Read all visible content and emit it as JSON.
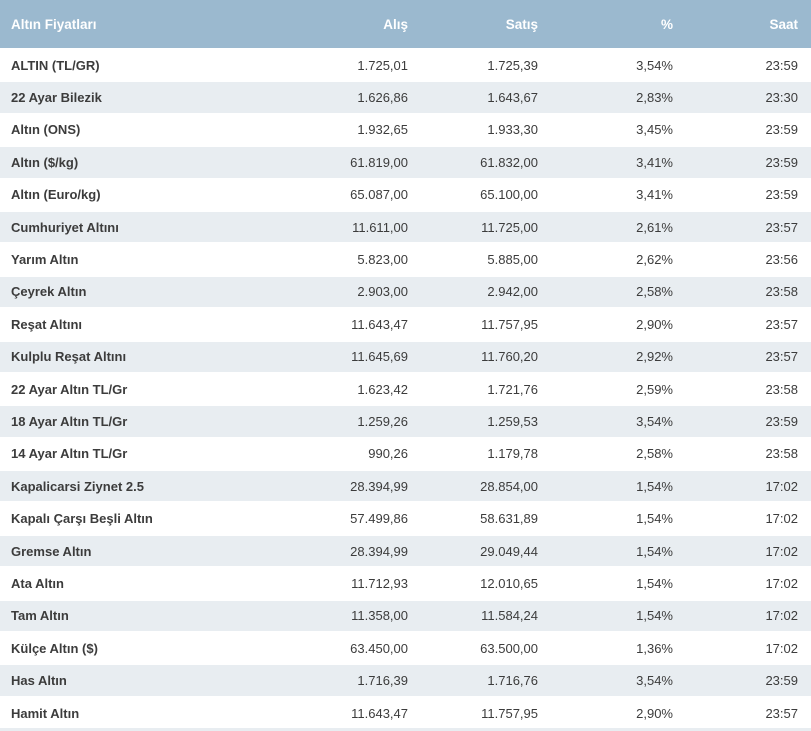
{
  "colors": {
    "header_bg": "#9bb9cf",
    "stripe_bg": "#e8edf1",
    "row_bg": "#ffffff",
    "separator": "#ffffff",
    "text": "#3c3c3c",
    "header_text": "#ffffff"
  },
  "table": {
    "header": {
      "title": "Altın Fiyatları",
      "buy": "Alış",
      "sell": "Satış",
      "percent": "%",
      "time": "Saat"
    },
    "rows": [
      {
        "name": "ALTIN (TL/GR)",
        "buy": "1.725,01",
        "sell": "1.725,39",
        "percent": "3,54%",
        "time": "23:59"
      },
      {
        "name": "22 Ayar Bilezik",
        "buy": "1.626,86",
        "sell": "1.643,67",
        "percent": "2,83%",
        "time": "23:30"
      },
      {
        "name": "Altın (ONS)",
        "buy": "1.932,65",
        "sell": "1.933,30",
        "percent": "3,45%",
        "time": "23:59"
      },
      {
        "name": "Altın ($/kg)",
        "buy": "61.819,00",
        "sell": "61.832,00",
        "percent": "3,41%",
        "time": "23:59"
      },
      {
        "name": "Altın (Euro/kg)",
        "buy": "65.087,00",
        "sell": "65.100,00",
        "percent": "3,41%",
        "time": "23:59"
      },
      {
        "name": "Cumhuriyet Altını",
        "buy": "11.611,00",
        "sell": "11.725,00",
        "percent": "2,61%",
        "time": "23:57"
      },
      {
        "name": "Yarım Altın",
        "buy": "5.823,00",
        "sell": "5.885,00",
        "percent": "2,62%",
        "time": "23:56"
      },
      {
        "name": "Çeyrek Altın",
        "buy": "2.903,00",
        "sell": "2.942,00",
        "percent": "2,58%",
        "time": "23:58"
      },
      {
        "name": "Reşat Altını",
        "buy": "11.643,47",
        "sell": "11.757,95",
        "percent": "2,90%",
        "time": "23:57"
      },
      {
        "name": "Kulplu Reşat Altını",
        "buy": "11.645,69",
        "sell": "11.760,20",
        "percent": "2,92%",
        "time": "23:57"
      },
      {
        "name": "22 Ayar Altın TL/Gr",
        "buy": "1.623,42",
        "sell": "1.721,76",
        "percent": "2,59%",
        "time": "23:58"
      },
      {
        "name": "18 Ayar Altın TL/Gr",
        "buy": "1.259,26",
        "sell": "1.259,53",
        "percent": "3,54%",
        "time": "23:59"
      },
      {
        "name": "14 Ayar Altın TL/Gr",
        "buy": "990,26",
        "sell": "1.179,78",
        "percent": "2,58%",
        "time": "23:58"
      },
      {
        "name": "Kapalicarsi Ziynet 2.5",
        "buy": "28.394,99",
        "sell": "28.854,00",
        "percent": "1,54%",
        "time": "17:02"
      },
      {
        "name": "Kapalı Çarşı Beşli Altın",
        "buy": "57.499,86",
        "sell": "58.631,89",
        "percent": "1,54%",
        "time": "17:02"
      },
      {
        "name": "Gremse Altın",
        "buy": "28.394,99",
        "sell": "29.049,44",
        "percent": "1,54%",
        "time": "17:02"
      },
      {
        "name": "Ata Altın",
        "buy": "11.712,93",
        "sell": "12.010,65",
        "percent": "1,54%",
        "time": "17:02"
      },
      {
        "name": "Tam Altın",
        "buy": "11.358,00",
        "sell": "11.584,24",
        "percent": "1,54%",
        "time": "17:02"
      },
      {
        "name": "Külçe Altın ($)",
        "buy": "63.450,00",
        "sell": "63.500,00",
        "percent": "1,36%",
        "time": "17:02"
      },
      {
        "name": "Has Altın",
        "buy": "1.716,39",
        "sell": "1.716,76",
        "percent": "3,54%",
        "time": "23:59"
      },
      {
        "name": "Hamit Altın",
        "buy": "11.643,47",
        "sell": "11.757,95",
        "percent": "2,90%",
        "time": "23:57"
      }
    ]
  }
}
